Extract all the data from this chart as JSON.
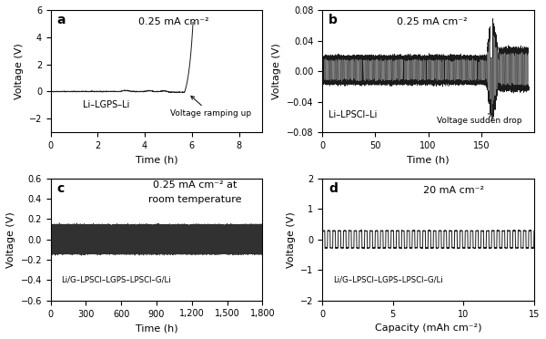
{
  "panel_a": {
    "label": "a",
    "annotation": "0.25 mA cm⁻²",
    "cell_label": "Li–LGPS–Li",
    "arrow_label": "Voltage ramping up",
    "xlabel": "Time (h)",
    "ylabel": "Voltage (V)",
    "xlim": [
      0,
      9
    ],
    "ylim": [
      -3,
      6
    ],
    "xticks": [
      0,
      2,
      4,
      6,
      8
    ],
    "yticks": [
      -2,
      0,
      2,
      4,
      6
    ]
  },
  "panel_b": {
    "label": "b",
    "annotation": "0.25 mA cm⁻²",
    "cell_label": "Li–LPSCl–Li",
    "arrow_label": "Voltage sudden drop",
    "xlabel": "Time (h)",
    "ylabel": "Voltage (V)",
    "xlim": [
      0,
      200
    ],
    "ylim": [
      -0.08,
      0.08
    ],
    "xticks": [
      0,
      50,
      100,
      150
    ],
    "yticks": [
      -0.08,
      -0.04,
      0,
      0.04,
      0.08
    ]
  },
  "panel_c": {
    "label": "c",
    "annotation_line1": "0.25 mA cm⁻² at",
    "annotation_line2": "room temperature",
    "cell_label": "Li/G–LPSCl–LGPS–LPSCl–G/Li",
    "xlabel": "Time (h)",
    "ylabel": "Voltage (V)",
    "xlim": [
      0,
      1800
    ],
    "ylim": [
      -0.6,
      0.6
    ],
    "xticks": [
      0,
      300,
      600,
      900,
      1200,
      1500,
      1800
    ],
    "yticks": [
      -0.6,
      -0.4,
      -0.2,
      0,
      0.2,
      0.4,
      0.6
    ]
  },
  "panel_d": {
    "label": "d",
    "annotation": "20 mA cm⁻²",
    "cell_label": "Li/G–LPSCl–LGPS–LPSCl–G/Li",
    "xlabel": "Capacity (mAh cm⁻²)",
    "ylabel": "Voltage (V)",
    "xlim": [
      0,
      15
    ],
    "ylim": [
      -2,
      2
    ],
    "xticks": [
      0,
      5,
      10,
      15
    ],
    "yticks": [
      -2,
      -1,
      0,
      1,
      2
    ]
  },
  "line_color": "#1a1a1a",
  "bg_color": "#ffffff",
  "font_size_label": 8,
  "font_size_annotation": 8,
  "font_size_panel_label": 10
}
